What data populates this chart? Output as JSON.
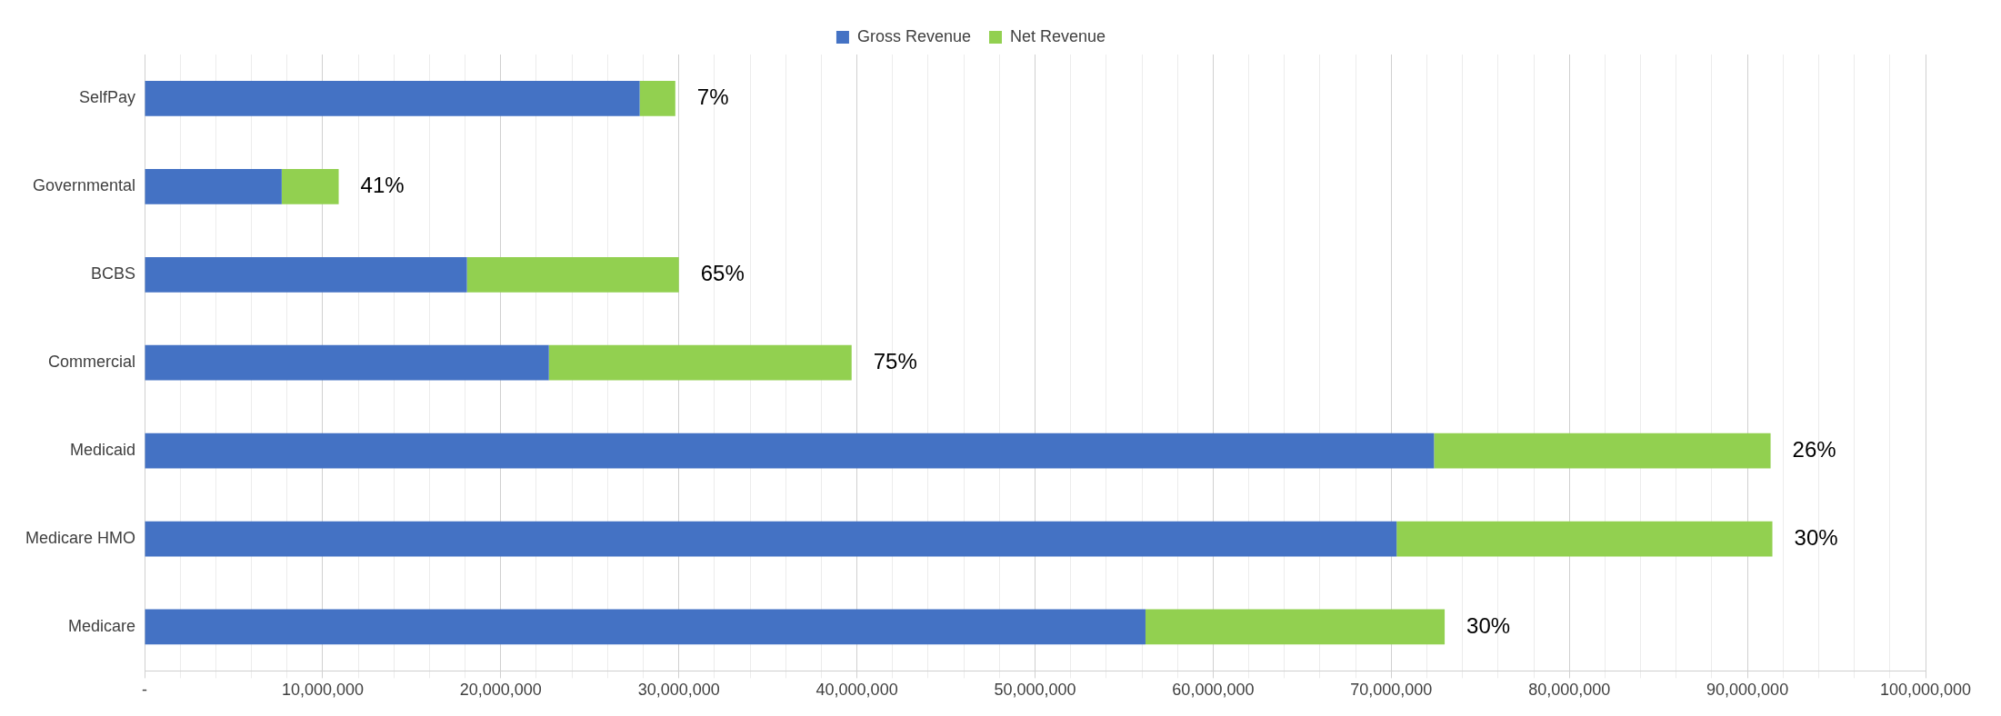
{
  "chart_data": {
    "type": "bar",
    "orientation": "horizontal",
    "stacked": true,
    "legend": "top",
    "grid": "x",
    "categories": [
      "SelfPay",
      "Governmental",
      "BCBS",
      "Commercial",
      "Medicaid",
      "Medicare HMO",
      "Medicare"
    ],
    "series": [
      {
        "name": "Gross Revenue",
        "color": "#4472c4",
        "values": [
          27800000,
          7700000,
          18100000,
          22700000,
          72400000,
          70300000,
          56200000
        ]
      },
      {
        "name": "Net Revenue",
        "color": "#92d050",
        "values": [
          2000000,
          3200000,
          11900000,
          17000000,
          18900000,
          21100000,
          16800000
        ]
      }
    ],
    "annotations": [
      {
        "text": "7%",
        "x": 29800000,
        "y": "SelfPay"
      },
      {
        "text": "41%",
        "x": 10900000,
        "y": "Governmental"
      },
      {
        "text": "65%",
        "x": 30000000,
        "y": "BCBS"
      },
      {
        "text": "75%",
        "x": 39700000,
        "y": "Commercial"
      },
      {
        "text": "26%",
        "x": 91300000,
        "y": "Medicaid"
      },
      {
        "text": "30%",
        "x": 91400000,
        "y": "Medicare HMO"
      },
      {
        "text": "30%",
        "x": 73000000,
        "y": "Medicare"
      }
    ],
    "xlim": [
      0,
      100000000
    ],
    "xticks": [
      {
        "value": 0,
        "label": "-"
      },
      {
        "value": 2000000,
        "label": null
      },
      {
        "value": 4000000,
        "label": null
      },
      {
        "value": 6000000,
        "label": null
      },
      {
        "value": 8000000,
        "label": null
      },
      {
        "value": 10000000,
        "label": "10,000,000"
      },
      {
        "value": 12000000,
        "label": null
      },
      {
        "value": 14000000,
        "label": null
      },
      {
        "value": 16000000,
        "label": null
      },
      {
        "value": 18000000,
        "label": null
      },
      {
        "value": 20000000,
        "label": "20,000,000"
      },
      {
        "value": 22000000,
        "label": null
      },
      {
        "value": 24000000,
        "label": null
      },
      {
        "value": 26000000,
        "label": null
      },
      {
        "value": 28000000,
        "label": null
      },
      {
        "value": 30000000,
        "label": "30,000,000"
      },
      {
        "value": 32000000,
        "label": null
      },
      {
        "value": 34000000,
        "label": null
      },
      {
        "value": 36000000,
        "label": null
      },
      {
        "value": 38000000,
        "label": null
      },
      {
        "value": 40000000,
        "label": "40,000,000"
      },
      {
        "value": 42000000,
        "label": null
      },
      {
        "value": 44000000,
        "label": null
      },
      {
        "value": 46000000,
        "label": null
      },
      {
        "value": 48000000,
        "label": null
      },
      {
        "value": 50000000,
        "label": "50,000,000"
      },
      {
        "value": 52000000,
        "label": null
      },
      {
        "value": 54000000,
        "label": null
      },
      {
        "value": 56000000,
        "label": null
      },
      {
        "value": 58000000,
        "label": null
      },
      {
        "value": 60000000,
        "label": "60,000,000"
      },
      {
        "value": 62000000,
        "label": null
      },
      {
        "value": 64000000,
        "label": null
      },
      {
        "value": 66000000,
        "label": null
      },
      {
        "value": 68000000,
        "label": null
      },
      {
        "value": 70000000,
        "label": "70,000,000"
      },
      {
        "value": 72000000,
        "label": null
      },
      {
        "value": 74000000,
        "label": null
      },
      {
        "value": 76000000,
        "label": null
      },
      {
        "value": 78000000,
        "label": null
      },
      {
        "value": 80000000,
        "label": "80,000,000"
      },
      {
        "value": 82000000,
        "label": null
      },
      {
        "value": 84000000,
        "label": null
      },
      {
        "value": 86000000,
        "label": null
      },
      {
        "value": 88000000,
        "label": null
      },
      {
        "value": 90000000,
        "label": "90,000,000"
      },
      {
        "value": 92000000,
        "label": null
      },
      {
        "value": 94000000,
        "label": null
      },
      {
        "value": 96000000,
        "label": null
      },
      {
        "value": 98000000,
        "label": null
      },
      {
        "value": 100000000,
        "label": "100,000,000"
      }
    ]
  }
}
